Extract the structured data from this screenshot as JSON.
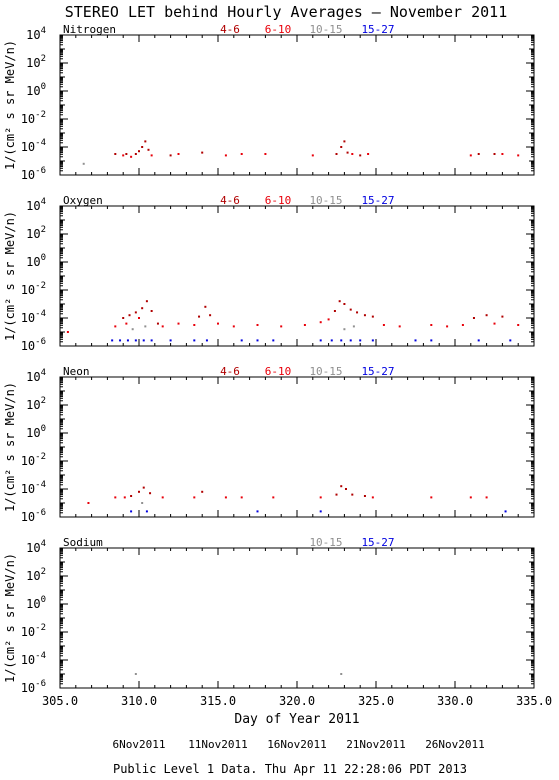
{
  "title": "STEREO LET behind Hourly Averages – November 2011",
  "xlabel": "Day of Year 2011",
  "ylabel": "1/(cm² s sr MeV/n)",
  "footer": "Public Level 1 Data. Thu Apr 11 22:28:06 PDT 2013",
  "date_labels": [
    {
      "day": 310.0,
      "text": "6Nov2011"
    },
    {
      "day": 315.0,
      "text": "11Nov2011"
    },
    {
      "day": 320.0,
      "text": "16Nov2011"
    },
    {
      "day": 325.0,
      "text": "21Nov2011"
    },
    {
      "day": 330.0,
      "text": "26Nov2011"
    }
  ],
  "colors": {
    "4-6": "#b00000",
    "6-10": "#e8000a",
    "10-15": "#909090",
    "15-27": "#0000e0",
    "axis": "#000000"
  },
  "chart_data": [
    {
      "type": "scatter",
      "name": "Nitrogen",
      "xlim": [
        305,
        335
      ],
      "ylim_log10": [
        -6,
        4
      ],
      "y_scale": "log",
      "x_ticks": [
        "305.0",
        "310.0",
        "315.0",
        "320.0",
        "325.0",
        "330.0",
        "335.0"
      ],
      "y_ticks": [
        "10^4",
        "10^2",
        "10^0",
        "10^-2",
        "10^-4",
        "10^-6"
      ],
      "legend": [
        "4-6",
        "6-10",
        "10-15",
        "15-27"
      ],
      "points": {
        "4-6": [
          [
            309.8,
            -4.5
          ],
          [
            310.0,
            -4.3
          ],
          [
            310.2,
            -4.0
          ],
          [
            310.4,
            -3.6
          ],
          [
            310.6,
            -4.2
          ],
          [
            308.5,
            -4.5
          ],
          [
            309.2,
            -4.5
          ],
          [
            312.0,
            -4.6
          ],
          [
            314.0,
            -4.4
          ],
          [
            322.5,
            -4.5
          ],
          [
            322.8,
            -4.0
          ],
          [
            323.0,
            -3.6
          ],
          [
            323.2,
            -4.4
          ],
          [
            324.0,
            -4.6
          ],
          [
            331.5,
            -4.5
          ],
          [
            332.5,
            -4.5
          ]
        ],
        "6-10": [
          [
            309.0,
            -4.6
          ],
          [
            309.5,
            -4.7
          ],
          [
            310.8,
            -4.6
          ],
          [
            312.5,
            -4.5
          ],
          [
            315.5,
            -4.6
          ],
          [
            316.5,
            -4.5
          ],
          [
            318.0,
            -4.5
          ],
          [
            321.0,
            -4.6
          ],
          [
            323.5,
            -4.5
          ],
          [
            324.5,
            -4.5
          ],
          [
            331.0,
            -4.6
          ],
          [
            333.0,
            -4.5
          ],
          [
            334.0,
            -4.6
          ]
        ],
        "10-15": [
          [
            306.5,
            -5.2
          ]
        ],
        "15-27": []
      }
    },
    {
      "type": "scatter",
      "name": "Oxygen",
      "xlim": [
        305,
        335
      ],
      "ylim_log10": [
        -6,
        4
      ],
      "y_scale": "log",
      "x_ticks": [
        "305.0",
        "310.0",
        "315.0",
        "320.0",
        "325.0",
        "330.0",
        "335.0"
      ],
      "y_ticks": [
        "10^4",
        "10^2",
        "10^0",
        "10^-2",
        "10^-4",
        "10^-6"
      ],
      "legend": [
        "4-6",
        "6-10",
        "10-15",
        "15-27"
      ],
      "points": {
        "4-6": [
          [
            309.0,
            -4.0
          ],
          [
            309.4,
            -3.8
          ],
          [
            309.8,
            -3.6
          ],
          [
            310.2,
            -3.3
          ],
          [
            310.5,
            -2.8
          ],
          [
            310.8,
            -3.5
          ],
          [
            311.2,
            -4.4
          ],
          [
            313.8,
            -3.9
          ],
          [
            314.2,
            -3.2
          ],
          [
            314.5,
            -3.8
          ],
          [
            322.4,
            -3.5
          ],
          [
            322.7,
            -2.8
          ],
          [
            323.0,
            -3.0
          ],
          [
            323.4,
            -3.4
          ],
          [
            323.8,
            -3.6
          ],
          [
            324.3,
            -3.8
          ],
          [
            324.8,
            -3.9
          ],
          [
            331.2,
            -4.0
          ],
          [
            332.0,
            -3.8
          ],
          [
            333.0,
            -3.9
          ]
        ],
        "6-10": [
          [
            305.5,
            -5.0
          ],
          [
            308.5,
            -4.6
          ],
          [
            309.2,
            -4.4
          ],
          [
            310.0,
            -4.0
          ],
          [
            311.5,
            -4.6
          ],
          [
            312.5,
            -4.4
          ],
          [
            313.5,
            -4.5
          ],
          [
            315.0,
            -4.4
          ],
          [
            316.0,
            -4.6
          ],
          [
            317.5,
            -4.5
          ],
          [
            319.0,
            -4.6
          ],
          [
            320.5,
            -4.5
          ],
          [
            321.5,
            -4.3
          ],
          [
            322.0,
            -4.1
          ],
          [
            325.5,
            -4.5
          ],
          [
            326.5,
            -4.6
          ],
          [
            328.5,
            -4.5
          ],
          [
            329.5,
            -4.6
          ],
          [
            330.5,
            -4.5
          ],
          [
            332.5,
            -4.4
          ],
          [
            334.0,
            -4.5
          ]
        ],
        "10-15": [
          [
            309.6,
            -4.8
          ],
          [
            310.4,
            -4.6
          ],
          [
            323.0,
            -4.8
          ],
          [
            323.6,
            -4.6
          ]
        ],
        "15-27": [
          [
            308.3,
            -5.6
          ],
          [
            308.8,
            -5.6
          ],
          [
            309.3,
            -5.6
          ],
          [
            309.8,
            -5.6
          ],
          [
            310.3,
            -5.6
          ],
          [
            310.8,
            -5.6
          ],
          [
            312.0,
            -5.6
          ],
          [
            313.5,
            -5.6
          ],
          [
            314.3,
            -5.6
          ],
          [
            316.5,
            -5.6
          ],
          [
            317.5,
            -5.6
          ],
          [
            318.5,
            -5.6
          ],
          [
            321.5,
            -5.6
          ],
          [
            322.2,
            -5.6
          ],
          [
            322.8,
            -5.6
          ],
          [
            323.4,
            -5.6
          ],
          [
            324.0,
            -5.6
          ],
          [
            324.8,
            -5.6
          ],
          [
            327.5,
            -5.6
          ],
          [
            328.5,
            -5.6
          ],
          [
            331.5,
            -5.6
          ],
          [
            333.5,
            -5.6
          ]
        ]
      }
    },
    {
      "type": "scatter",
      "name": "Neon",
      "xlim": [
        305,
        335
      ],
      "ylim_log10": [
        -6,
        4
      ],
      "y_scale": "log",
      "x_ticks": [
        "305.0",
        "310.0",
        "315.0",
        "320.0",
        "325.0",
        "330.0",
        "335.0"
      ],
      "y_ticks": [
        "10^4",
        "10^2",
        "10^0",
        "10^-2",
        "10^-4",
        "10^-6"
      ],
      "legend": [
        "4-6",
        "6-10",
        "10-15",
        "15-27"
      ],
      "points": {
        "4-6": [
          [
            309.5,
            -4.5
          ],
          [
            310.0,
            -4.2
          ],
          [
            310.3,
            -3.9
          ],
          [
            310.7,
            -4.3
          ],
          [
            314.0,
            -4.2
          ],
          [
            322.5,
            -4.4
          ],
          [
            322.8,
            -3.8
          ],
          [
            323.1,
            -4.0
          ],
          [
            323.5,
            -4.4
          ],
          [
            324.3,
            -4.5
          ]
        ],
        "6-10": [
          [
            306.8,
            -5.0
          ],
          [
            308.5,
            -4.6
          ],
          [
            309.1,
            -4.6
          ],
          [
            311.5,
            -4.6
          ],
          [
            313.5,
            -4.6
          ],
          [
            315.5,
            -4.6
          ],
          [
            316.5,
            -4.6
          ],
          [
            318.5,
            -4.6
          ],
          [
            321.5,
            -4.6
          ],
          [
            324.8,
            -4.6
          ],
          [
            328.5,
            -4.6
          ],
          [
            331.0,
            -4.6
          ],
          [
            332.0,
            -4.6
          ]
        ],
        "10-15": [
          [
            310.2,
            -5.0
          ]
        ],
        "15-27": [
          [
            309.5,
            -5.6
          ],
          [
            310.5,
            -5.6
          ],
          [
            317.5,
            -5.6
          ],
          [
            321.5,
            -5.6
          ],
          [
            333.2,
            -5.6
          ]
        ]
      }
    },
    {
      "type": "scatter",
      "name": "Sodium",
      "xlim": [
        305,
        335
      ],
      "ylim_log10": [
        -6,
        4
      ],
      "y_scale": "log",
      "x_ticks": [
        "305.0",
        "310.0",
        "315.0",
        "320.0",
        "325.0",
        "330.0",
        "335.0"
      ],
      "y_ticks": [
        "10^4",
        "10^2",
        "10^0",
        "10^-2",
        "10^-4",
        "10^-6"
      ],
      "legend": [
        "10-15",
        "15-27"
      ],
      "points": {
        "4-6": [],
        "6-10": [],
        "10-15": [
          [
            309.8,
            -5.0
          ],
          [
            322.8,
            -5.0
          ]
        ],
        "15-27": []
      }
    }
  ]
}
